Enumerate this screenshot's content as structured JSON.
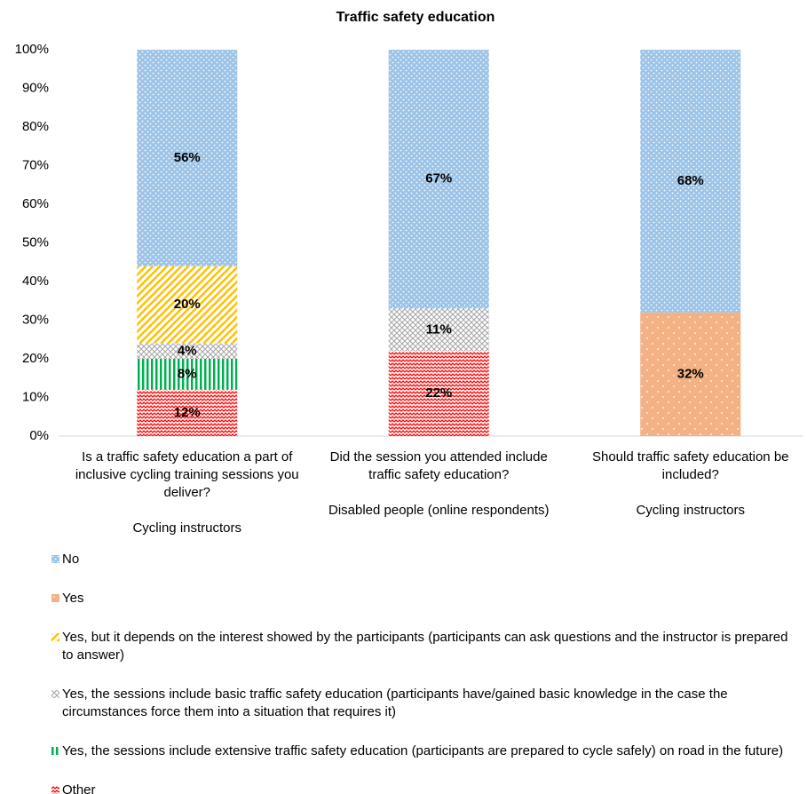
{
  "chart_data": {
    "type": "stacked_bar",
    "title": "Traffic safety education",
    "categories": [
      "Is a traffic safety education a part of inclusive cycling training sessions you deliver?",
      "Did the session you attended include traffic safety education?",
      "Should traffic safety education be included?"
    ],
    "category_groups": [
      "Cycling instructors",
      "Disabled people (online respondents)",
      "Cycling instructors"
    ],
    "series": [
      {
        "name": "No",
        "color": "#9dc3e6",
        "pattern": "dots",
        "values": [
          56,
          67,
          68
        ],
        "value_labels": [
          "56%",
          "67%",
          "68%"
        ]
      },
      {
        "name": "Yes",
        "color": "#f4b183",
        "pattern": "sparse-dots",
        "values": [
          null,
          null,
          32
        ],
        "value_labels": [
          null,
          null,
          "32%"
        ]
      },
      {
        "name": "Yes, but it depends on the interest showed by the participants (participants can ask questions and the instructor is prepared to answer)",
        "color": "#ffc000",
        "pattern": "diagonal",
        "values": [
          20,
          null,
          null
        ],
        "value_labels": [
          "20%",
          null,
          null
        ]
      },
      {
        "name": "Yes, the sessions include basic traffic safety education (participants have/gained basic knowledge in the case the circumstances force them into a situation that requires it)",
        "color": "#a5a5a5",
        "pattern": "cross",
        "values": [
          4,
          11,
          null
        ],
        "value_labels": [
          "4%",
          "11%",
          null
        ]
      },
      {
        "name": "Yes, the sessions include extensive traffic safety education (participants are prepared to cycle safely) on road in the future)",
        "color": "#00b050",
        "pattern": "vertical",
        "values": [
          8,
          null,
          null
        ],
        "value_labels": [
          "8%",
          null,
          null
        ]
      },
      {
        "name": "Other",
        "color": "#ff0000",
        "pattern": "zigzag",
        "values": [
          12,
          22,
          null
        ],
        "value_labels": [
          "12%",
          "22%",
          null
        ]
      }
    ],
    "ylim": [
      0,
      100
    ],
    "yticks": [
      {
        "value": 0,
        "label": "0%"
      },
      {
        "value": 10,
        "label": "10%"
      },
      {
        "value": 20,
        "label": "20%"
      },
      {
        "value": 30,
        "label": "30%"
      },
      {
        "value": 40,
        "label": "40%"
      },
      {
        "value": 50,
        "label": "50%"
      },
      {
        "value": 60,
        "label": "60%"
      },
      {
        "value": 70,
        "label": "70%"
      },
      {
        "value": 80,
        "label": "80%"
      },
      {
        "value": 90,
        "label": "90%"
      },
      {
        "value": 100,
        "label": "100%"
      }
    ],
    "legend": "bottom"
  }
}
